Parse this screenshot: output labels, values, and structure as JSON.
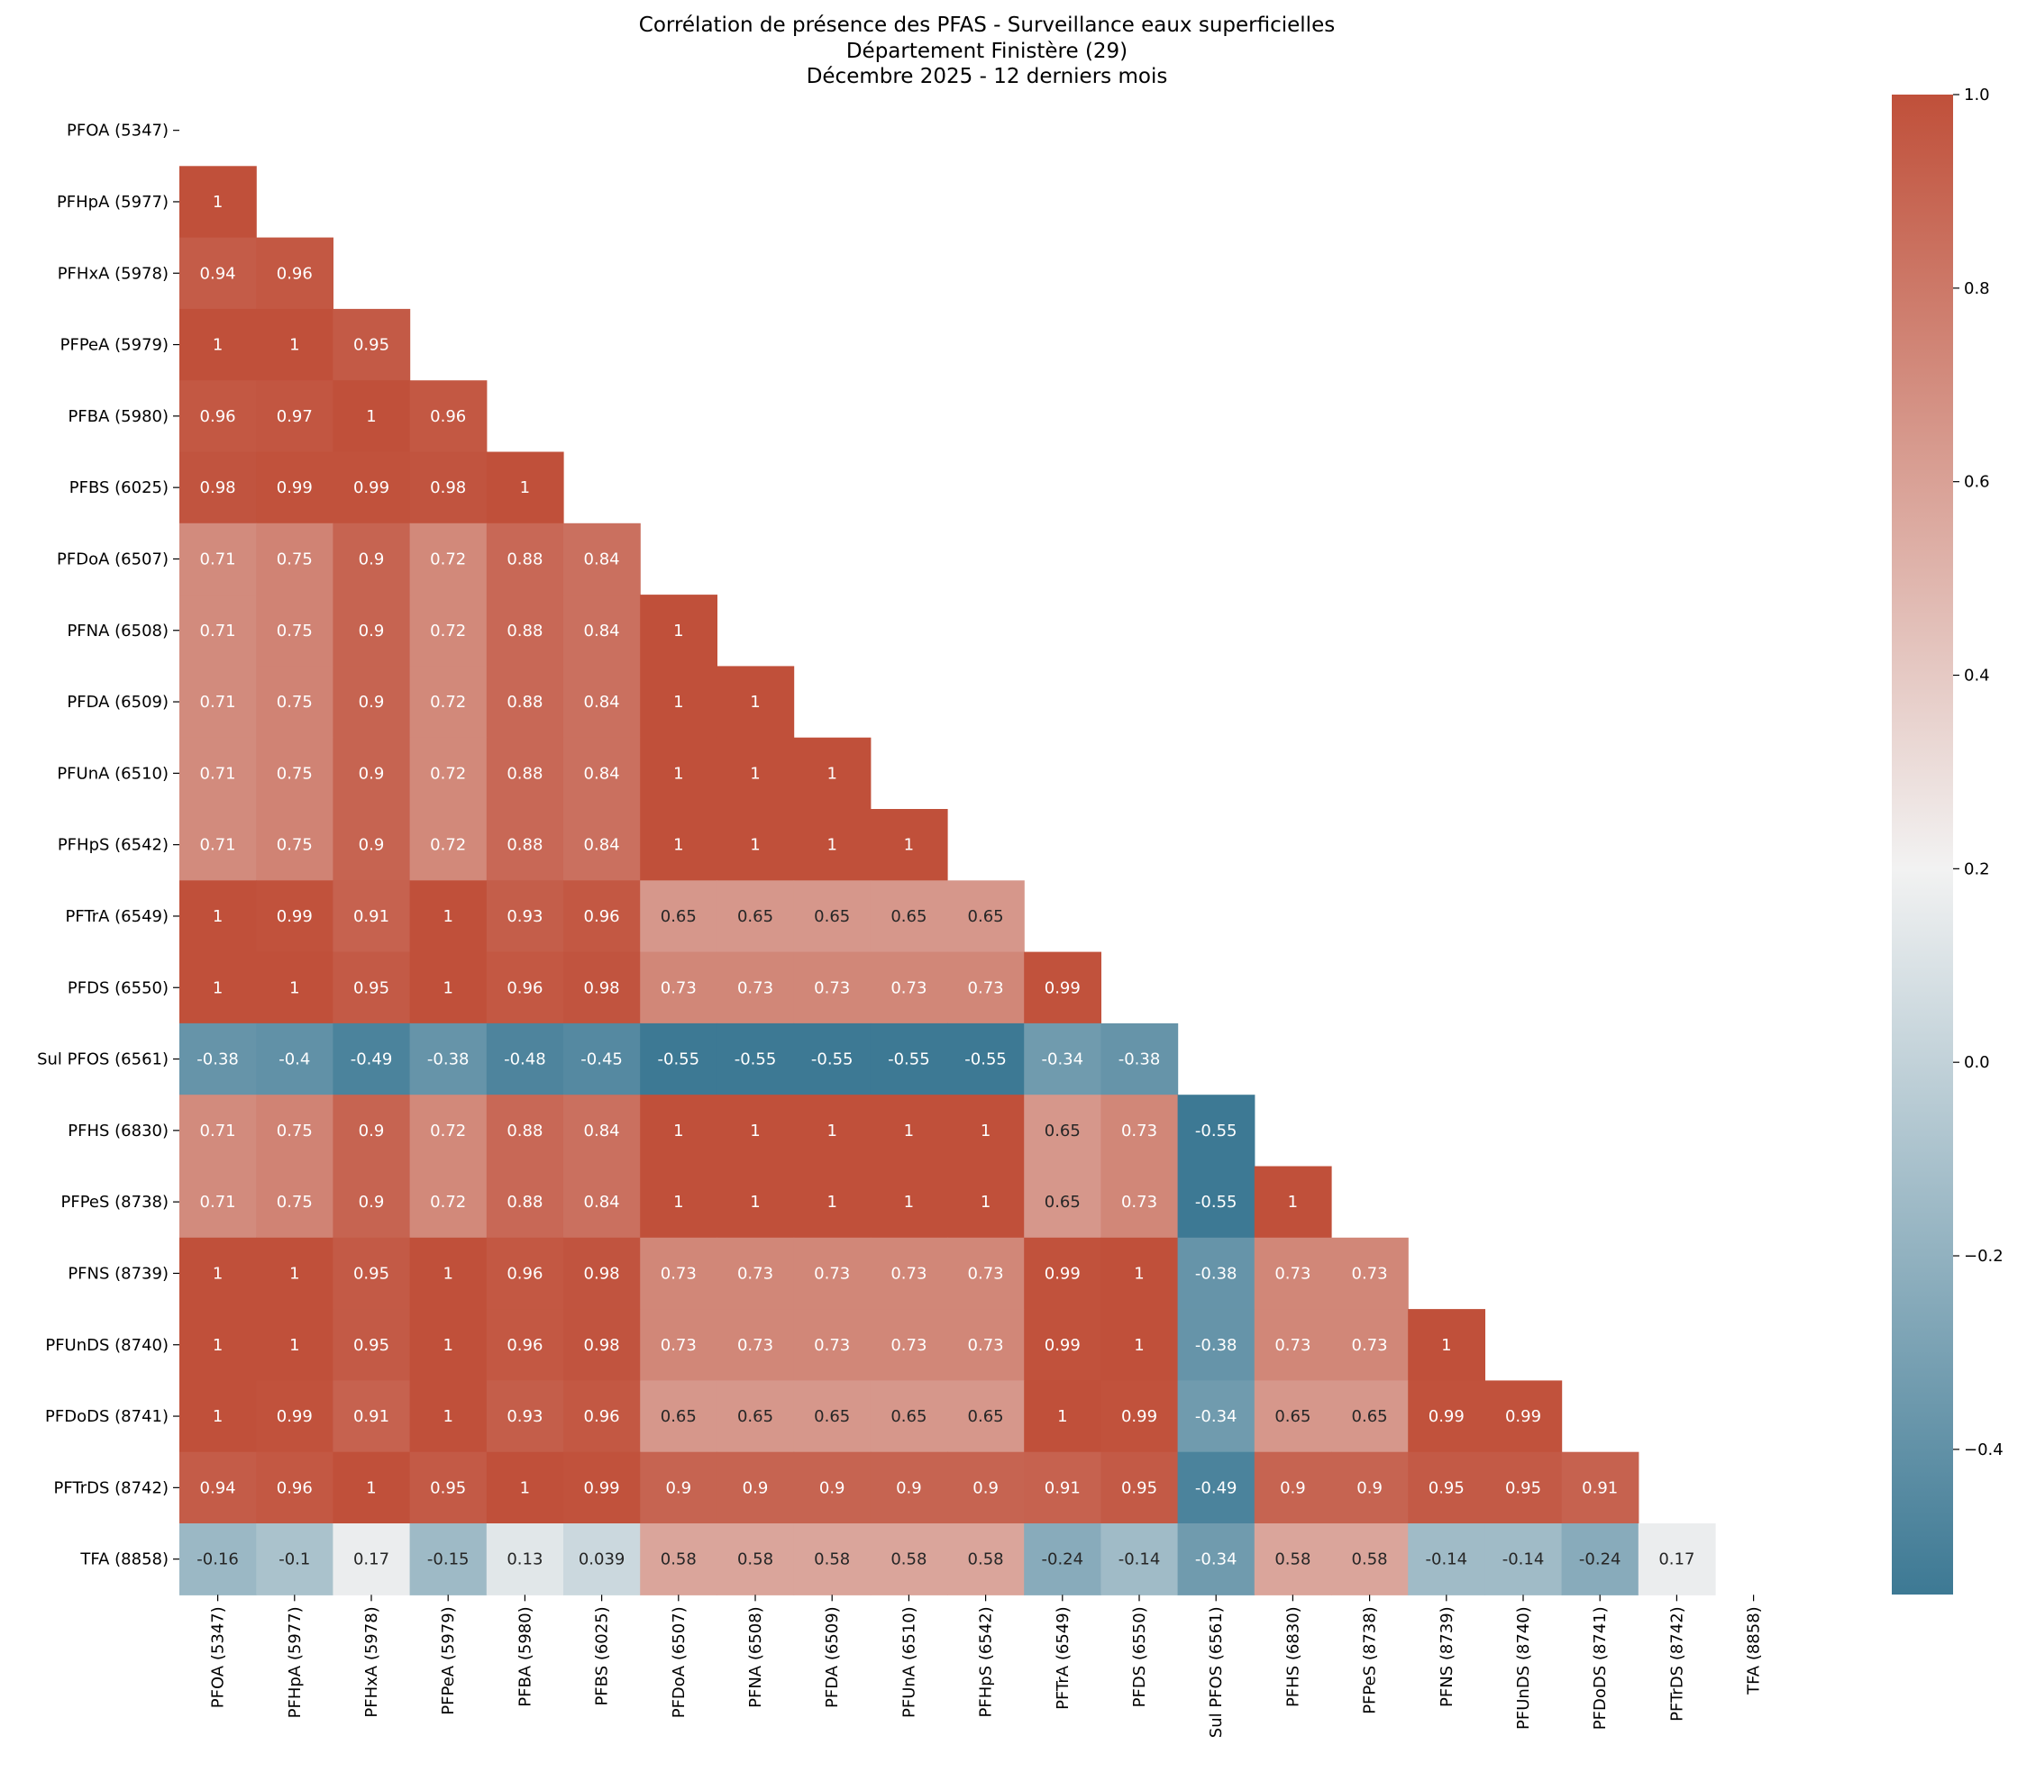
{
  "chart_data": {
    "type": "heatmap",
    "title_lines": [
      "Corrélation de présence des PFAS - Surveillance eaux superficielles",
      "Département Finistère (29)",
      "Décembre 2025 - 12 derniers mois"
    ],
    "labels": [
      "PFOA (5347)",
      "PFHpA (5977)",
      "PFHxA (5978)",
      "PFPeA (5979)",
      "PFBA (5980)",
      "PFBS (6025)",
      "PFDoA (6507)",
      "PFNA (6508)",
      "PFDA (6509)",
      "PFUnA (6510)",
      "PFHpS (6542)",
      "PFTrA (6549)",
      "PFDS (6550)",
      "Sul PFOS (6561)",
      "PFHS (6830)",
      "PFPeS (8738)",
      "PFNS (8739)",
      "PFUnDS (8740)",
      "PFDoDS (8741)",
      "PFTrDS (8742)",
      "TFA (8858)"
    ],
    "lower_triangle_values": [
      [],
      [
        "1"
      ],
      [
        "0.94",
        "0.96"
      ],
      [
        "1",
        "1",
        "0.95"
      ],
      [
        "0.96",
        "0.97",
        "1",
        "0.96"
      ],
      [
        "0.98",
        "0.99",
        "0.99",
        "0.98",
        "1"
      ],
      [
        "0.71",
        "0.75",
        "0.9",
        "0.72",
        "0.88",
        "0.84"
      ],
      [
        "0.71",
        "0.75",
        "0.9",
        "0.72",
        "0.88",
        "0.84",
        "1"
      ],
      [
        "0.71",
        "0.75",
        "0.9",
        "0.72",
        "0.88",
        "0.84",
        "1",
        "1"
      ],
      [
        "0.71",
        "0.75",
        "0.9",
        "0.72",
        "0.88",
        "0.84",
        "1",
        "1",
        "1"
      ],
      [
        "0.71",
        "0.75",
        "0.9",
        "0.72",
        "0.88",
        "0.84",
        "1",
        "1",
        "1",
        "1"
      ],
      [
        "1",
        "0.99",
        "0.91",
        "1",
        "0.93",
        "0.96",
        "0.65",
        "0.65",
        "0.65",
        "0.65",
        "0.65"
      ],
      [
        "1",
        "1",
        "0.95",
        "1",
        "0.96",
        "0.98",
        "0.73",
        "0.73",
        "0.73",
        "0.73",
        "0.73",
        "0.99"
      ],
      [
        "-0.38",
        "-0.4",
        "-0.49",
        "-0.38",
        "-0.48",
        "-0.45",
        "-0.55",
        "-0.55",
        "-0.55",
        "-0.55",
        "-0.55",
        "-0.34",
        "-0.38"
      ],
      [
        "0.71",
        "0.75",
        "0.9",
        "0.72",
        "0.88",
        "0.84",
        "1",
        "1",
        "1",
        "1",
        "1",
        "0.65",
        "0.73",
        "-0.55"
      ],
      [
        "0.71",
        "0.75",
        "0.9",
        "0.72",
        "0.88",
        "0.84",
        "1",
        "1",
        "1",
        "1",
        "1",
        "0.65",
        "0.73",
        "-0.55",
        "1"
      ],
      [
        "1",
        "1",
        "0.95",
        "1",
        "0.96",
        "0.98",
        "0.73",
        "0.73",
        "0.73",
        "0.73",
        "0.73",
        "0.99",
        "1",
        "-0.38",
        "0.73",
        "0.73"
      ],
      [
        "1",
        "1",
        "0.95",
        "1",
        "0.96",
        "0.98",
        "0.73",
        "0.73",
        "0.73",
        "0.73",
        "0.73",
        "0.99",
        "1",
        "-0.38",
        "0.73",
        "0.73",
        "1"
      ],
      [
        "1",
        "0.99",
        "0.91",
        "1",
        "0.93",
        "0.96",
        "0.65",
        "0.65",
        "0.65",
        "0.65",
        "0.65",
        "1",
        "0.99",
        "-0.34",
        "0.65",
        "0.65",
        "0.99",
        "0.99"
      ],
      [
        "0.94",
        "0.96",
        "1",
        "0.95",
        "1",
        "0.99",
        "0.9",
        "0.9",
        "0.9",
        "0.9",
        "0.9",
        "0.91",
        "0.95",
        "-0.49",
        "0.9",
        "0.9",
        "0.95",
        "0.95",
        "0.91"
      ],
      [
        "-0.16",
        "-0.1",
        "0.17",
        "-0.15",
        "0.13",
        "0.039",
        "0.58",
        "0.58",
        "0.58",
        "0.58",
        "0.58",
        "-0.24",
        "-0.14",
        "-0.34",
        "0.58",
        "0.58",
        "-0.14",
        "-0.14",
        "-0.24",
        "0.17"
      ]
    ],
    "mask": "upper triangle incl. diagonal",
    "colorbar": {
      "vmin": -0.55,
      "vmax": 1.0,
      "center": 0.2,
      "ticks": [
        "−0.4",
        "−0.2",
        "0.0",
        "0.2",
        "0.4",
        "0.6",
        "0.8",
        "1.0"
      ],
      "tick_values": [
        -0.4,
        -0.2,
        0.0,
        0.2,
        0.4,
        0.6,
        0.8,
        1.0
      ]
    },
    "colors": {
      "negative": "#3d7994",
      "center": "#f2f2f2",
      "positive": "#c0503a"
    }
  }
}
